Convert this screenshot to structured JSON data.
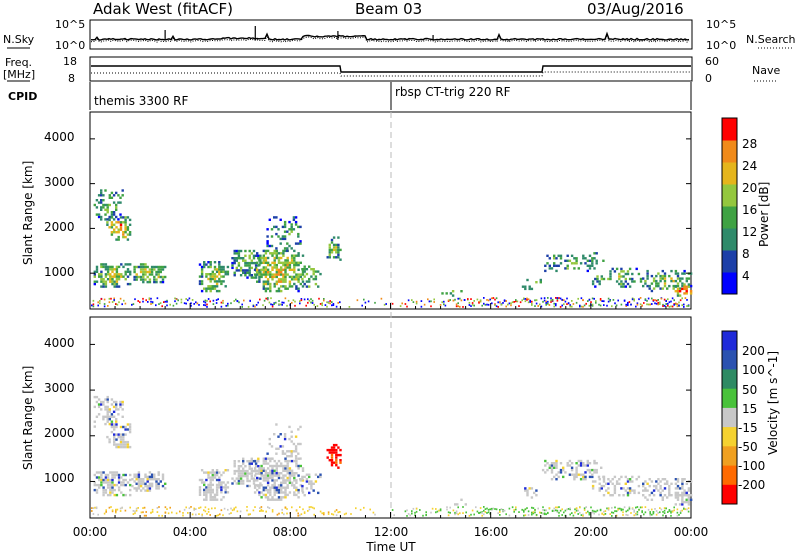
{
  "header": {
    "station": "Adak West (fitACF)",
    "beam": "Beam 03",
    "date": "03/Aug/2016"
  },
  "top_panels": {
    "nsky_label": "N.Sky",
    "nsearch_label": "N.Search",
    "freq_label": "Freq.",
    "freq_unit": "[MHz]",
    "cpid_label": "CPID",
    "nave_label": "Nave",
    "nsky_ticks": [
      "10^5",
      "10^0"
    ],
    "nsearch_ticks": [
      "10^5",
      "10^0"
    ],
    "freq_ticks": [
      "18",
      "8"
    ],
    "nave_ticks": [
      "60",
      "0"
    ],
    "cpid_segments": [
      {
        "label": "themis 3300 RF",
        "start": "00:00"
      },
      {
        "label": "rbsp CT-trig 220 RF",
        "start": "12:00"
      }
    ]
  },
  "chart_data": [
    {
      "type": "heatmap",
      "name": "power",
      "ylabel": "Slant Range [km]",
      "yticks": [
        "1000",
        "2000",
        "3000",
        "4000"
      ],
      "ylim": [
        200,
        4600
      ],
      "colorbar": {
        "label": "Power [dB]",
        "ticks": [
          "4",
          "8",
          "12",
          "16",
          "20",
          "24",
          "28"
        ],
        "range": [
          0,
          32
        ],
        "colors": [
          "#0000ff",
          "#1c3fa8",
          "#2f8a6a",
          "#3fa243",
          "#94c73e",
          "#e5b51c",
          "#f08a1a",
          "#ff0000"
        ]
      }
    },
    {
      "type": "heatmap",
      "name": "velocity",
      "ylabel": "Slant Range [km]",
      "yticks": [
        "1000",
        "2000",
        "3000",
        "4000"
      ],
      "ylim": [
        200,
        4600
      ],
      "colorbar": {
        "label": "Velocity [m s^-1]",
        "ticks": [
          "200",
          "100",
          "50",
          "15",
          "-15",
          "-50",
          "-100",
          "-200"
        ],
        "colors": [
          "#1f2ad9",
          "#2b52b0",
          "#2e8a63",
          "#49c23a",
          "#c8c8c8",
          "#f5d230",
          "#f0a020",
          "#ff6a00",
          "#ff0000"
        ]
      }
    }
  ],
  "xaxis": {
    "label": "Time UT",
    "ticks": [
      "00:00",
      "04:00",
      "08:00",
      "12:00",
      "16:00",
      "20:00",
      "00:00"
    ],
    "range_hours": [
      0,
      24
    ]
  }
}
